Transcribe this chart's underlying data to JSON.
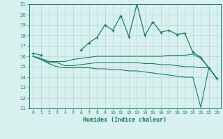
{
  "xlabel": "Humidex (Indice chaleur)",
  "x": [
    0,
    1,
    2,
    3,
    4,
    5,
    6,
    7,
    8,
    9,
    10,
    11,
    12,
    13,
    14,
    15,
    16,
    17,
    18,
    19,
    20,
    21,
    22,
    23
  ],
  "line_main": [
    16.3,
    16.1,
    null,
    null,
    null,
    null,
    16.6,
    17.3,
    17.8,
    19.0,
    18.5,
    19.9,
    17.9,
    21.0,
    18.0,
    19.3,
    18.3,
    18.5,
    18.1,
    18.2,
    16.4,
    15.9,
    14.9,
    13.9
  ],
  "line_upper": [
    16.0,
    15.8,
    15.5,
    15.5,
    15.5,
    15.7,
    15.8,
    15.9,
    16.0,
    16.0,
    16.0,
    16.0,
    16.0,
    16.0,
    16.0,
    16.0,
    16.0,
    16.1,
    16.1,
    16.1,
    16.2,
    15.8,
    14.9,
    13.9
  ],
  "line_mid": [
    16.0,
    15.7,
    15.4,
    15.4,
    15.1,
    15.1,
    15.2,
    15.3,
    15.4,
    15.4,
    15.4,
    15.4,
    15.4,
    15.4,
    15.3,
    15.3,
    15.2,
    15.2,
    15.1,
    15.0,
    15.0,
    14.9,
    14.9,
    13.9
  ],
  "line_lower": [
    16.0,
    15.7,
    15.3,
    15.0,
    14.9,
    14.9,
    14.9,
    14.9,
    14.8,
    14.8,
    14.7,
    14.7,
    14.6,
    14.6,
    14.5,
    14.4,
    14.3,
    14.2,
    14.1,
    14.0,
    14.0,
    11.1,
    14.9,
    13.9
  ],
  "ylim": [
    11,
    21
  ],
  "xlim": [
    -0.5,
    23.5
  ],
  "yticks": [
    11,
    12,
    13,
    14,
    15,
    16,
    17,
    18,
    19,
    20,
    21
  ],
  "xticks": [
    0,
    1,
    2,
    3,
    4,
    5,
    6,
    7,
    8,
    9,
    10,
    11,
    12,
    13,
    14,
    15,
    16,
    17,
    18,
    19,
    20,
    21,
    22,
    23
  ],
  "line_color": "#1a7a6e",
  "bg_color": "#d8f0ee",
  "grid_color": "#b0d8d4"
}
